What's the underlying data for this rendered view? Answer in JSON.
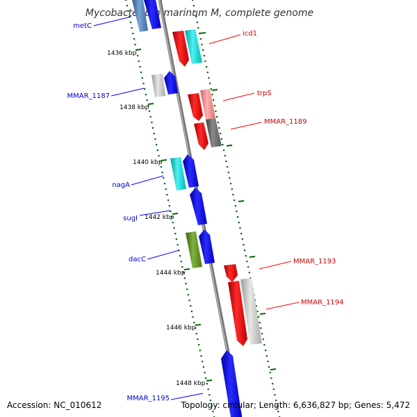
{
  "title": "Mycobacterium marinum M, complete genome",
  "footer": {
    "accession": "Accession: NC_010612",
    "topology": "Topology: circular; Length: 6,636,827 bp; Genes: 5,472"
  },
  "ticks": [
    {
      "label": "1436 kbp"
    },
    {
      "label": "1438 kbp"
    },
    {
      "label": "1440 kbp"
    },
    {
      "label": "1442 kbp"
    },
    {
      "label": "1444 kbp"
    },
    {
      "label": "1446 kbp"
    },
    {
      "label": "1448 kbp"
    }
  ],
  "genes": [
    {
      "name": "metC",
      "strand": "-",
      "color": "#3333ff"
    },
    {
      "name": "icd1",
      "strand": "+",
      "color": "#ff0000"
    },
    {
      "name": "MMAR_1187",
      "strand": "-",
      "color": "#3333ff"
    },
    {
      "name": "trpS",
      "strand": "+",
      "color": "#ff0000"
    },
    {
      "name": "MMAR_1189",
      "strand": "+",
      "color": "#ff0000"
    },
    {
      "name": "nagA",
      "strand": "-",
      "color": "#3333ff"
    },
    {
      "name": "sugI",
      "strand": "-",
      "color": "#3333ff"
    },
    {
      "name": "dacC",
      "strand": "-",
      "color": "#3333ff"
    },
    {
      "name": "MMAR_1193",
      "strand": "+",
      "color": "#ff0000"
    },
    {
      "name": "MMAR_1194",
      "strand": "+",
      "color": "#ff0000"
    },
    {
      "name": "MMAR_1195",
      "strand": "-",
      "color": "#3333ff"
    }
  ],
  "colors": {
    "backbone": "#808080",
    "forward_cds": "#ff0000",
    "reverse_cds": "#0000ff",
    "tick": "#006600",
    "cog_cyan": "#00cccc",
    "cog_grey": "#b3b3b3",
    "cog_olive": "#5c8a1e",
    "cog_pink": "#f08080",
    "cog_darkgrey": "#666666",
    "cog_steel": "#4a7fb5"
  }
}
